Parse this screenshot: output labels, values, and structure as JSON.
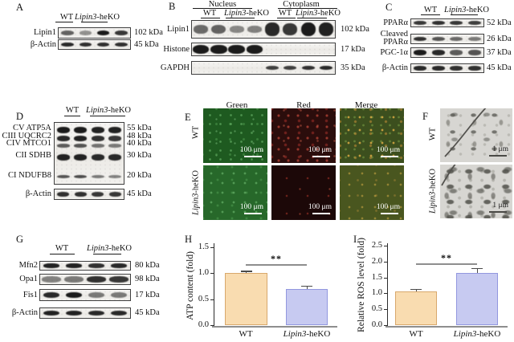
{
  "figure": {
    "description": "Lipin3-heKO western blot, microscopy and bar chart figure"
  },
  "colors": {
    "band": "#1b1b1b",
    "axis": "#2b2b2b",
    "baseline_gray": "#8e8e8e",
    "sig_line": "#8e8e8e",
    "bar_wt_fill": "#F9DCB0",
    "bar_wt_border": "#D8A86C",
    "bar_ko_fill": "#C7CAF1",
    "bar_ko_border": "#9297DF"
  },
  "panels": {
    "A": {
      "label": "A",
      "groups": [
        "WT",
        "Lipin3-heKO"
      ],
      "rows": [
        {
          "label": "Lipin1",
          "kda": "102 kDa",
          "bands": [
            0.5,
            0.18,
            1,
            0.8
          ]
        },
        {
          "label": "β-Actin",
          "kda": "45 kDa",
          "bands": [
            0.9,
            0.85,
            0.85,
            0.85
          ]
        }
      ]
    },
    "B": {
      "label": "B",
      "fractions": [
        "Nucleus",
        "Cytoplasm"
      ],
      "groups": [
        "WT",
        "Lipin3-heKO",
        "WT",
        "Lipin3-heKO"
      ],
      "rows": [
        {
          "label": "Lipin1",
          "kda": "102 kDa",
          "bands": [
            0.45,
            0.5,
            0.25,
            0.3,
            0.9,
            0.8,
            1,
            0.95
          ]
        },
        {
          "label": "Histone",
          "kda": "17 kDa",
          "bands": [
            1,
            1,
            1,
            1,
            0,
            0,
            0,
            0
          ]
        },
        {
          "label": "GAPDH",
          "kda": "35 kDa",
          "bands": [
            0,
            0,
            0,
            0,
            0.75,
            0.75,
            0.85,
            0.9
          ]
        }
      ]
    },
    "C": {
      "label": "C",
      "groups": [
        "WT",
        "Lipin3-heKO"
      ],
      "rows": [
        {
          "label": "PPARα",
          "kda": "52 kDa",
          "bands": [
            0.8,
            0.85,
            0.8,
            0.75
          ]
        },
        {
          "label": "Cleaved PPARα",
          "kda": "26 kDa",
          "bands": [
            0.85,
            0.6,
            0.45,
            0.35
          ],
          "two_line": true
        },
        {
          "label": "PGC-1α",
          "kda": "37 kDa",
          "bands": [
            1,
            0.9,
            0.55,
            0.6
          ]
        },
        {
          "label": "β-Actin",
          "kda": "45 kDa",
          "bands": [
            0.9,
            0.9,
            0.85,
            0.85
          ]
        }
      ]
    },
    "D": {
      "label": "D",
      "groups": [
        "WT",
        "Lipin3-heKO"
      ],
      "complex_rows": [
        {
          "label": "CV ATP5A",
          "kda": "55 kDa",
          "bands": [
            1,
            1,
            0.95,
            0.95
          ]
        },
        {
          "label": "CIII UQCRC2",
          "kda": "48 kDa",
          "bands": [
            0.9,
            0.95,
            0.85,
            0.8
          ]
        },
        {
          "label": "CIV MTCO1",
          "kda": "40 kDa",
          "bands": [
            0.55,
            0.6,
            0.4,
            0.35
          ]
        },
        {
          "label": "CII SDHB",
          "kda": "30 kDa",
          "bands": [
            0.95,
            0.95,
            0.9,
            0.9
          ]
        },
        {
          "label": "CI NDUFB8",
          "kda": "20 kDa",
          "bands": [
            0.6,
            0.65,
            0.35,
            0.3
          ]
        }
      ],
      "actin_row": {
        "label": "β-Actin",
        "kda": "45 kDa",
        "bands": [
          0.85,
          0.85,
          0.8,
          0.8
        ]
      }
    },
    "E": {
      "label": "E",
      "col_headers": [
        "Green",
        "Red",
        "Merge"
      ],
      "row_headers": [
        "WT",
        "Lipin3-heKO"
      ],
      "scale_label": "100 μm",
      "cells": [
        {
          "row": "WT",
          "col": "Green",
          "base": "#1e5a20"
        },
        {
          "row": "WT",
          "col": "Red",
          "base": "#2b0d0c"
        },
        {
          "row": "WT",
          "col": "Merge",
          "base": "#3c4f1e"
        },
        {
          "row": "Lipin3-heKO",
          "col": "Green",
          "base": "#27682a"
        },
        {
          "row": "Lipin3-heKO",
          "col": "Red",
          "base": "#1c0808"
        },
        {
          "row": "Lipin3-heKO",
          "col": "Merge",
          "base": "#49561f"
        }
      ]
    },
    "F": {
      "label": "F",
      "row_headers": [
        "WT",
        "Lipin3-heKO"
      ],
      "scale_label": "1 μm"
    },
    "G": {
      "label": "G",
      "groups": [
        "WT",
        "Lipin3-heKO"
      ],
      "rows": [
        {
          "label": "Mfn2",
          "kda": "80 kDa",
          "bands": [
            0.95,
            0.95,
            0.85,
            0.9
          ]
        },
        {
          "label": "Opa1",
          "kda": "98 kDa",
          "bands": [
            0.3,
            0.35,
            0.85,
            0.8
          ]
        },
        {
          "label": "Fis1",
          "kda": "17 kDa",
          "bands": [
            0.9,
            1,
            0.35,
            0.35
          ]
        },
        {
          "label": "β-Actin",
          "kda": "45 kDa",
          "bands": [
            0.95,
            0.95,
            0.9,
            0.9
          ]
        }
      ]
    },
    "H": {
      "label": "H"
    },
    "I": {
      "label": "I"
    }
  },
  "chart_data": [
    {
      "type": "bar",
      "panel": "H",
      "categories": [
        "WT",
        "Lipin3-heKO"
      ],
      "values": [
        1.0,
        0.69
      ],
      "errors": [
        0.03,
        0.05
      ],
      "xlabel": "",
      "ylabel": "ATP content (fold)",
      "ylim": [
        0,
        1.5
      ],
      "yticks": [
        0,
        0.5,
        1,
        1.5
      ],
      "significance": "**",
      "grid": false,
      "legend": null
    },
    {
      "type": "bar",
      "panel": "I",
      "categories": [
        "WT",
        "Lipin3-heKO"
      ],
      "values": [
        1.05,
        1.65
      ],
      "errors": [
        0.07,
        0.12
      ],
      "xlabel": "",
      "ylabel": "Relative ROS level (fold)",
      "ylim": [
        0,
        2.5
      ],
      "yticks": [
        0,
        0.5,
        1,
        1.5,
        2,
        2.5
      ],
      "significance": "**",
      "grid": false,
      "legend": null
    }
  ]
}
